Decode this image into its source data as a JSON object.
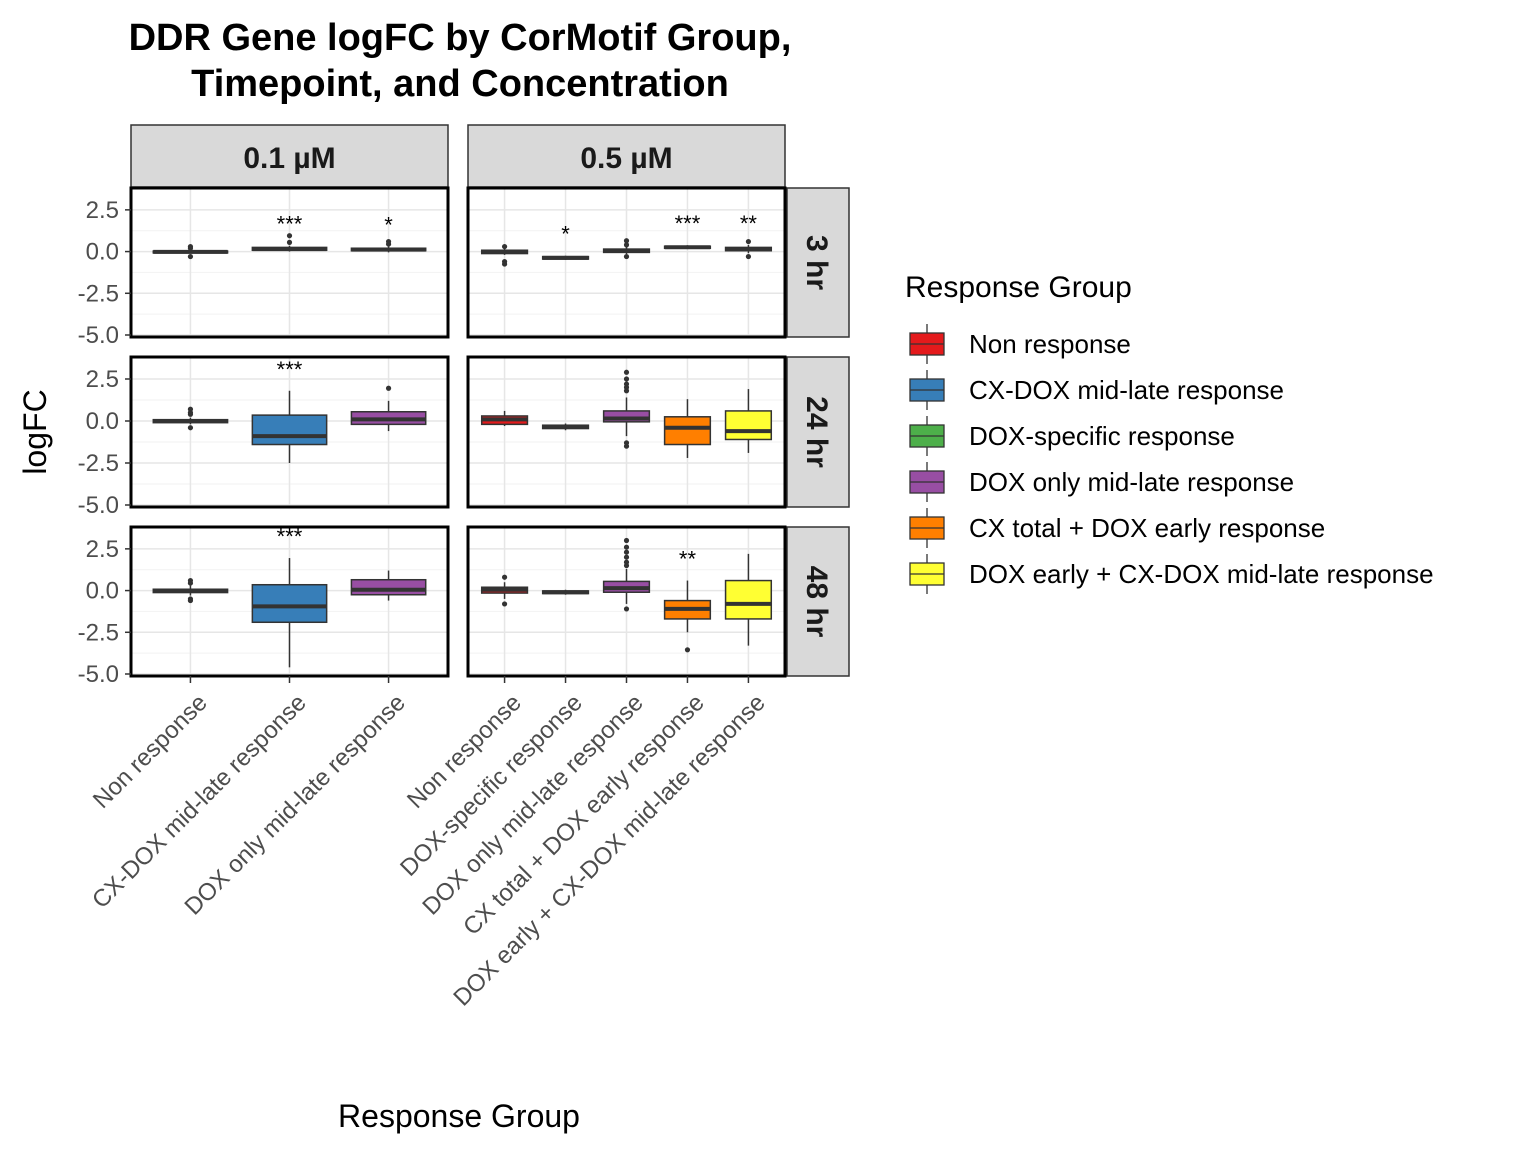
{
  "chart_data": {
    "type": "boxplot",
    "title_line1": "DDR Gene logFC by CorMotif Group,",
    "title_line2": "Timepoint, and Concentration",
    "xlabel": "Response Group",
    "ylabel": "logFC",
    "ylim": [
      -5,
      3.75
    ],
    "yticks": [
      "2.5",
      "0.0",
      "-2.5",
      "-5.0"
    ],
    "ytick_values": [
      2.5,
      0,
      -2.5,
      -5
    ],
    "grid": true,
    "legend": {
      "title": "Response Group",
      "placement": "right",
      "items": [
        {
          "label": "Non response",
          "color": "#E41A1C"
        },
        {
          "label": "CX-DOX mid-late response",
          "color": "#377EB8"
        },
        {
          "label": "DOX-specific response",
          "color": "#4DAF4A"
        },
        {
          "label": "DOX only mid-late response",
          "color": "#984EA3"
        },
        {
          "label": "CX total + DOX early response",
          "color": "#FF7F00"
        },
        {
          "label": "DOX early + CX-DOX mid-late response",
          "color": "#FFFF33"
        }
      ]
    },
    "columns": [
      {
        "label": "0.1 µM",
        "categories": [
          "Non response",
          "CX-DOX mid-late response",
          "DOX only mid-late response"
        ]
      },
      {
        "label": "0.5 µM",
        "categories": [
          "Non response",
          "DOX-specific response",
          "DOX only mid-late response",
          "CX total + DOX early response",
          "DOX early + CX-DOX mid-late response"
        ]
      }
    ],
    "rows": [
      {
        "label": "3 hr"
      },
      {
        "label": "24 hr"
      },
      {
        "label": "48 hr"
      }
    ],
    "panels": [
      {
        "row": 0,
        "col": 0,
        "boxes": [
          {
            "cat": 0,
            "color": "#E41A1C",
            "min": -0.1,
            "q1": -0.08,
            "median": -0.02,
            "q3": 0.03,
            "max": 0.1,
            "outliers": [
              0.3,
              -0.3,
              0.2
            ]
          },
          {
            "cat": 1,
            "color": "#377EB8",
            "min": 0.0,
            "q1": 0.08,
            "median": 0.15,
            "q3": 0.25,
            "max": 0.35,
            "outliers": [
              0.95,
              0.55
            ],
            "sig": "***"
          },
          {
            "cat": 2,
            "color": "#984EA3",
            "min": -0.05,
            "q1": 0.05,
            "median": 0.12,
            "q3": 0.2,
            "max": 0.3,
            "outliers": [
              0.6,
              0.45
            ],
            "sig": "*"
          }
        ]
      },
      {
        "row": 0,
        "col": 1,
        "boxes": [
          {
            "cat": 0,
            "color": "#E41A1C",
            "min": -0.2,
            "q1": -0.12,
            "median": -0.02,
            "q3": 0.08,
            "max": 0.2,
            "outliers": [
              -0.6,
              -0.75,
              0.3
            ]
          },
          {
            "cat": 1,
            "color": "#4DAF4A",
            "min": -0.5,
            "q1": -0.45,
            "median": -0.38,
            "q3": -0.3,
            "max": -0.25,
            "outliers": [],
            "sig": "*"
          },
          {
            "cat": 2,
            "color": "#984EA3",
            "min": -0.15,
            "q1": -0.05,
            "median": 0.05,
            "q3": 0.15,
            "max": 0.3,
            "outliers": [
              0.65,
              0.4,
              -0.3
            ]
          },
          {
            "cat": 3,
            "color": "#FF7F00",
            "min": 0.15,
            "q1": 0.2,
            "median": 0.26,
            "q3": 0.32,
            "max": 0.38,
            "outliers": [],
            "sig": "***"
          },
          {
            "cat": 4,
            "color": "#FFFF33",
            "min": -0.1,
            "q1": 0.05,
            "median": 0.14,
            "q3": 0.25,
            "max": 0.4,
            "outliers": [
              0.6,
              -0.3
            ],
            "sig": "**"
          }
        ]
      },
      {
        "row": 1,
        "col": 0,
        "boxes": [
          {
            "cat": 0,
            "color": "#E41A1C",
            "min": -0.2,
            "q1": -0.1,
            "median": 0.0,
            "q3": 0.08,
            "max": 0.2,
            "outliers": [
              0.7,
              0.5,
              0.4,
              -0.4
            ]
          },
          {
            "cat": 1,
            "color": "#377EB8",
            "min": -2.5,
            "q1": -1.4,
            "median": -0.9,
            "q3": 0.35,
            "max": 1.8,
            "outliers": [],
            "sig": "***"
          },
          {
            "cat": 2,
            "color": "#984EA3",
            "min": -0.6,
            "q1": -0.2,
            "median": 0.1,
            "q3": 0.55,
            "max": 1.2,
            "outliers": [
              1.95
            ]
          }
        ]
      },
      {
        "row": 1,
        "col": 1,
        "boxes": [
          {
            "cat": 0,
            "color": "#E41A1C",
            "min": -0.3,
            "q1": -0.2,
            "median": 0.1,
            "q3": 0.3,
            "max": 0.6,
            "outliers": []
          },
          {
            "cat": 1,
            "color": "#4DAF4A",
            "min": -0.55,
            "q1": -0.45,
            "median": -0.35,
            "q3": -0.25,
            "max": -0.15,
            "outliers": []
          },
          {
            "cat": 2,
            "color": "#984EA3",
            "min": -0.9,
            "q1": -0.05,
            "median": 0.15,
            "q3": 0.6,
            "max": 1.4,
            "outliers": [
              2.9,
              2.5,
              2.2,
              2.0,
              1.8,
              -1.3,
              -1.5
            ]
          },
          {
            "cat": 3,
            "color": "#FF7F00",
            "min": -2.2,
            "q1": -1.4,
            "median": -0.4,
            "q3": 0.25,
            "max": 1.3,
            "outliers": []
          },
          {
            "cat": 4,
            "color": "#FFFF33",
            "min": -1.9,
            "q1": -1.1,
            "median": -0.6,
            "q3": 0.6,
            "max": 1.9,
            "outliers": []
          }
        ]
      },
      {
        "row": 2,
        "col": 0,
        "boxes": [
          {
            "cat": 0,
            "color": "#E41A1C",
            "min": -0.3,
            "q1": -0.12,
            "median": -0.02,
            "q3": 0.08,
            "max": 0.3,
            "outliers": [
              0.6,
              0.45,
              -0.5,
              -0.6
            ]
          },
          {
            "cat": 1,
            "color": "#377EB8",
            "min": -4.6,
            "q1": -1.9,
            "median": -0.95,
            "q3": 0.35,
            "max": 1.95,
            "outliers": [],
            "sig": "***"
          },
          {
            "cat": 2,
            "color": "#984EA3",
            "min": -0.6,
            "q1": -0.25,
            "median": 0.05,
            "q3": 0.65,
            "max": 1.2,
            "outliers": []
          }
        ]
      },
      {
        "row": 2,
        "col": 1,
        "boxes": [
          {
            "cat": 0,
            "color": "#E41A1C",
            "min": -0.5,
            "q1": -0.15,
            "median": 0.05,
            "q3": 0.2,
            "max": 0.5,
            "outliers": [
              0.8,
              -0.8
            ]
          },
          {
            "cat": 1,
            "color": "#4DAF4A",
            "min": -0.25,
            "q1": -0.18,
            "median": -0.1,
            "q3": -0.02,
            "max": 0.05,
            "outliers": []
          },
          {
            "cat": 2,
            "color": "#984EA3",
            "min": -0.8,
            "q1": -0.1,
            "median": 0.15,
            "q3": 0.55,
            "max": 1.3,
            "outliers": [
              3.0,
              2.6,
              2.3,
              2.0,
              1.7,
              1.5,
              -1.1
            ]
          },
          {
            "cat": 3,
            "color": "#FF7F00",
            "min": -2.5,
            "q1": -1.7,
            "median": -1.1,
            "q3": -0.6,
            "max": 0.6,
            "outliers": [
              -3.55
            ],
            "sig": "**"
          },
          {
            "cat": 4,
            "color": "#FFFF33",
            "min": -3.3,
            "q1": -1.7,
            "median": -0.8,
            "q3": 0.6,
            "max": 2.2,
            "outliers": []
          }
        ]
      }
    ]
  }
}
